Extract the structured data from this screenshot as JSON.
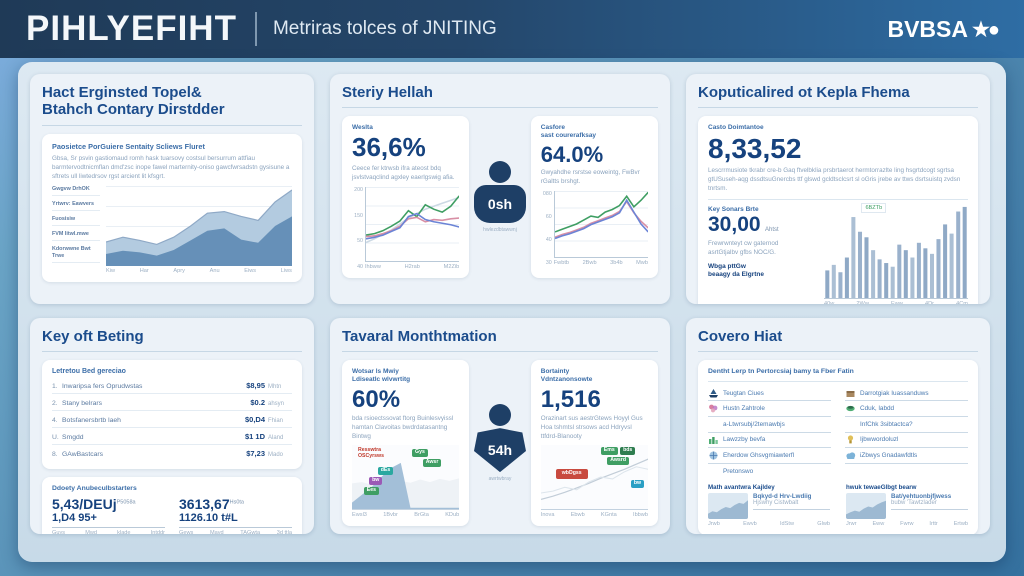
{
  "colors": {
    "header_start": "#1f3a57",
    "header_end": "#2e6da4",
    "page_start": "#6aa4c6",
    "page_end": "#35719f",
    "panel_bg": "#ecf2f8",
    "card_bg": "#ffffff",
    "title_blue": "#1b4c8c",
    "number_blue": "#16427e",
    "accent_green": "#3f9e63",
    "accent_pink": "#d88fa5",
    "accent_blue_line": "#6b84d6",
    "bar_blue": "#8fa9c6",
    "person_navy": "#1e3f66",
    "chip_red": "#c84a3f",
    "chip_teal": "#2aa8a0",
    "chip_purple": "#9b59b6",
    "chip_green": "#3f9e63",
    "chip_blue": "#2a9fc4"
  },
  "header": {
    "logo": "PIHLYEFIHT",
    "tagline": "Metriras tolces of JNITING",
    "brand": "BVBSA",
    "brand_icon": "star-globe"
  },
  "chart_data": [
    {
      "id": "p1-stacked-area",
      "type": "area",
      "categories": [
        "Kiw",
        "Har",
        "Apry",
        "Anu",
        "Eiws",
        "Liws"
      ],
      "ylim": [
        0,
        100
      ],
      "series": [
        {
          "name": "outer-band",
          "color": "#b3cbe0",
          "line": "#8fa9c6",
          "values": [
            30,
            36,
            32,
            27,
            36,
            50,
            66,
            68,
            62,
            57,
            80,
            95
          ]
        },
        {
          "name": "inner-band",
          "color": "#6690b8",
          "values": [
            15,
            19,
            17,
            13,
            20,
            32,
            44,
            47,
            33,
            29,
            50,
            62
          ]
        }
      ]
    },
    {
      "id": "p2-left-lines",
      "type": "line",
      "yticks": [
        "200",
        "150",
        "50",
        "40"
      ],
      "categories": [
        "Ihbww",
        "H2rab",
        "M2Zib"
      ],
      "series": [
        {
          "name": "trend-gray",
          "color": "#ccd9e4",
          "values": [
            25,
            30,
            36,
            42,
            50,
            58,
            64,
            70,
            74,
            78,
            82,
            86
          ]
        },
        {
          "name": "series-green",
          "color": "#3f9e63",
          "values": [
            35,
            37,
            41,
            47,
            54,
            68,
            60,
            76,
            70,
            66,
            74,
            88
          ]
        },
        {
          "name": "series-pink",
          "color": "#d88fa5",
          "values": [
            33,
            34,
            37,
            41,
            47,
            57,
            59,
            53,
            56,
            55,
            57,
            58
          ]
        },
        {
          "name": "series-blue",
          "color": "#6b84d6",
          "values": [
            30,
            32,
            35,
            40,
            45,
            60,
            64,
            56,
            53,
            51,
            49,
            46
          ]
        }
      ]
    },
    {
      "id": "p2-right-lines",
      "type": "line",
      "yticks": [
        "080",
        "60",
        "40",
        "30"
      ],
      "categories": [
        "Fwbtb",
        "2Bwb",
        "3b4b",
        "Mwb"
      ],
      "series": [
        {
          "name": "series-green",
          "color": "#3f9e63",
          "values": [
            38,
            42,
            46,
            50,
            56,
            62,
            60,
            68,
            72,
            78,
            92,
            76,
            86,
            98
          ]
        },
        {
          "name": "series-pink",
          "color": "#d88fa5",
          "values": [
            30,
            34,
            37,
            41,
            45,
            51,
            55,
            59,
            63,
            69,
            84,
            67,
            54,
            44
          ]
        },
        {
          "name": "series-blue",
          "color": "#6b84d6",
          "values": [
            28,
            32,
            35,
            39,
            43,
            49,
            53,
            57,
            61,
            67,
            86,
            68,
            50,
            38
          ]
        }
      ]
    },
    {
      "id": "p3-bars",
      "type": "bar",
      "legend": "6BZTb",
      "categories": [
        "40w",
        "2Ww",
        "Eww",
        "4Dr",
        "4Cm"
      ],
      "color": "#8fa9c6",
      "values": [
        30,
        36,
        28,
        44,
        88,
        72,
        66,
        52,
        42,
        38,
        34,
        58,
        52,
        44,
        60,
        54,
        48,
        64,
        80,
        70,
        94,
        99
      ]
    },
    {
      "id": "p5-left-sketch",
      "type": "area",
      "series": [
        {
          "name": "sketch-bg",
          "color": "#eef2f6",
          "values": [
            40,
            42,
            38,
            45,
            40,
            44,
            41,
            46,
            42,
            47,
            44,
            48
          ]
        },
        {
          "name": "blue-ramp",
          "color": "#a3bfd8",
          "values": [
            10,
            22,
            34,
            50,
            64,
            72,
            2,
            2,
            2,
            2,
            2,
            2
          ]
        }
      ]
    },
    {
      "id": "p5-right-sketch",
      "type": "line",
      "series": [
        {
          "name": "sketch-line",
          "color": "#c2cdd8",
          "w": 1.2,
          "values": [
            15,
            20,
            26,
            33,
            40,
            48,
            55,
            62,
            70,
            78
          ]
        },
        {
          "name": "sketch-line-2",
          "color": "#dde5ec",
          "w": 1,
          "values": [
            25,
            28,
            34,
            30,
            42,
            50,
            47,
            58,
            66,
            62
          ]
        }
      ]
    },
    {
      "id": "p6-thumb-1",
      "type": "area",
      "series": [
        {
          "name": "thumb-area",
          "color": "#9db9d2",
          "values": [
            20,
            30,
            26,
            38,
            46,
            42,
            54,
            62,
            58,
            72
          ]
        }
      ]
    },
    {
      "id": "p6-thumb-2",
      "type": "area",
      "series": [
        {
          "name": "thumb-area",
          "color": "#9db9d2",
          "values": [
            18,
            26,
            32,
            28,
            40,
            48,
            44,
            56,
            64,
            70
          ]
        }
      ]
    }
  ],
  "panels": {
    "p1": {
      "title1": "Hact Erginsted Topel&",
      "title2": "Btahch Contary Dirstdder",
      "card_title": "Paosietce PorGuiere Sentaity Scliews Fluret",
      "body": "Gbsa, Sr psvin gastiomaud romh hask tuarsovy costsul bersurrum attfiau barmtervodtnicmflan dmd'zsc inope fawel marternity-oniso gawcfwrsadstn gysisune a sftrets ull liwtedrsov rgst arcient lit kfsgrt.",
      "legend": [
        "Gwgvw DrhOK",
        "Yrtwrv: Eawvers",
        "Fuosisiw",
        "FVM Iitwl.mwe",
        "Kdorwwne Bwt Trwe"
      ],
      "x_labels": [
        "Kiw",
        "Har",
        "Apry",
        "Anu",
        "Eiws",
        "Liws"
      ]
    },
    "p2": {
      "title": "Steriy Hellah",
      "left": {
        "label": "Weslta",
        "value": "36,6%",
        "desc": "Ceece fer ktrwsb ifra ateost bdq jsvlstvaqclind agxley eaerlgswig afia.",
        "yticks": [
          "200",
          "150",
          "50",
          "40"
        ],
        "xticks": [
          "Ihbww",
          "H2rab",
          "M2Zib"
        ]
      },
      "right": {
        "label1": "Casfore",
        "label2": "sast courerafksay",
        "value": "64.0%",
        "desc": "Gwyahdhe rsrstse eoweintg, FwBvr rGaltts brshgt.",
        "yticks": [
          "080",
          "60",
          "40",
          "30"
        ],
        "xticks": [
          "Fwbtb",
          "2Bwb",
          "3b4b",
          "Mwb"
        ]
      },
      "badge": "0sh",
      "badge_caption": "hwlezdbtawwnj"
    },
    "p3": {
      "title": "Koputicalired ot Kepla Fhema",
      "label": "Casto Doimtantoe",
      "value": "8,33,52",
      "desc": "Lescrrmusiote tkrabr cre-b Gaq ftvelbklia prsbrtaerot hermtorrazlte ling hsgrtdcogt sgrtsa gtUSuseh-aqg dssdtsuGnercbs ttf glswd gcldtsclcsrt sl oGris jrebe av ttws dsrtsuistq zvdsn tnrtsm.",
      "sub_label": "Key Sonars Brte",
      "sub_value": "30,00",
      "sub_suffix": "Ahtst",
      "sub_desc1": "Frewrwnteyt cw gaternod",
      "sub_desc2": "asrtGtjalbv gfbs NOC/G.",
      "sub_bold1": "Wbga pttGw",
      "sub_bold2": "beaagy da Elgrtne",
      "bar_legend": "6BZTb",
      "xticks": [
        "40w",
        "2Ww",
        "Eww",
        "4Dr",
        "4Cm"
      ]
    },
    "p4": {
      "title": "Key oft Beting",
      "list_header": "Letretou Bed gereciao",
      "rows": [
        {
          "num": "1.",
          "label": "Inwaripsa fers Oprudwstas",
          "value": "$8,95",
          "unit": "Mhtn"
        },
        {
          "num": "2.",
          "label": "Stany belrars",
          "value": "$0.2",
          "unit": "ahsyn"
        },
        {
          "num": "4.",
          "label": "Botsfanersbrtb laeh",
          "value": "$0,D4",
          "unit": "Fhian"
        },
        {
          "num": "U.",
          "label": "Smgdd",
          "value": "$1 1D",
          "unit": "Aland"
        },
        {
          "num": "8.",
          "label": "GAwBastcars",
          "value": "$7,23",
          "unit": "Mado"
        }
      ],
      "stats_header": "Ddoety Anubeculbstarters",
      "stat_left": {
        "value": "5,43/DEUj",
        "sup": "P5058a",
        "line2": "1,D4 95+",
        "ticks": [
          "Guys",
          "Mwd",
          "klade",
          "Intddr"
        ]
      },
      "stat_right": {
        "value": "3613,67",
        "sup": "Hs0ta",
        "line2": "1126.10 t#L",
        "ticks": [
          "Gews",
          "Mavd",
          "TAGwta",
          "3d ttla"
        ]
      }
    },
    "p5": {
      "title": "Tavaral Monthtmation",
      "left": {
        "label1": "Wotsar ls Mwiy",
        "label2": "Ldiseatlc wlvwrtitg",
        "value": "60%",
        "desc": "bda rsioectssovat ftorg Buinlesvyissl hamtan Clavoitas bwdrdatasantng Bintwg",
        "chips": [
          "Resswtra OSCyrsws",
          "dEs",
          "bw",
          "Ees",
          "Gys",
          "Awsr"
        ],
        "xticks": [
          "Ewsl3",
          "1Bvbr",
          "BrGta",
          "KDub"
        ]
      },
      "right": {
        "label1": "Bortainty",
        "label2": "Vdntzanonsowte",
        "value": "1,516",
        "desc": "Orazinart sus aestrGtews Hoyyl Gus Hoa tshmtsl strsows acd Hdryvsl ttfdrd-Blanooty",
        "chips": [
          "wbDgss",
          "Ems",
          "bds",
          "Awsrd",
          "bw"
        ],
        "xticks": [
          "Inova",
          "Ebwb",
          "KGnta",
          "Ibbwb"
        ]
      },
      "badge": "54h",
      "badge_caption": "awrtwbray"
    },
    "p6": {
      "title": "Covero Hiat",
      "list_header": "Dentht Lerp tn Pertorcsiaj bamy ta Fber Fatin",
      "left_items": [
        {
          "icon": "ship-icon",
          "label": "Teugtan Ciues"
        },
        {
          "icon": "flower-icon",
          "label": "Hustn Zahtrole"
        },
        {
          "icon": "",
          "label": "a-Ltwrsubj/2temawbjs"
        },
        {
          "icon": "bars-icon",
          "label": "Lawzzby bevfa"
        },
        {
          "icon": "globe-icon",
          "label": "Eherdow Ghsvgmiawterfl"
        },
        {
          "icon": "",
          "label": "Pretonswo"
        }
      ],
      "right_items": [
        {
          "icon": "box-icon",
          "label": "Darrotgiak Iuassanduws"
        },
        {
          "icon": "leaf-icon",
          "label": "Cduk, labdd"
        },
        {
          "icon": "",
          "label": "InfChk 3sibtactca?"
        },
        {
          "icon": "lamp-icon",
          "label": "Ijbwwordoluzl"
        },
        {
          "icon": "cloud-icon",
          "label": "iZbwys Gnadawfdtls"
        }
      ],
      "thumb1": {
        "label": "Math avantwra Kajldey",
        "line1": "Bqkyd-d Hrv-Lwdiig",
        "line2": "Hjswhy Cistwbalt",
        "ticks": [
          "Jrwb",
          "Ewvb",
          "IdStw",
          "Glwb"
        ]
      },
      "thumb2": {
        "label": "hwuk tewaeGlbgt bearw",
        "line1": "Bat/yehtuonbjfjwess",
        "line2": "bubw 'Tawtzlader",
        "ticks": [
          "Jrwr",
          "Eww",
          "Fwrw",
          "Irttr",
          "Ertwb"
        ]
      }
    }
  }
}
